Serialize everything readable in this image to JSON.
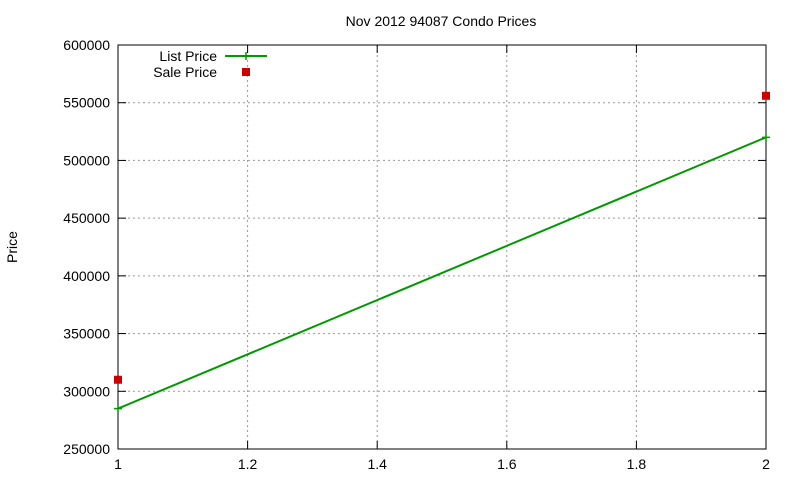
{
  "chart_data": {
    "type": "line",
    "title": "Nov 2012 94087 Condo Prices",
    "xlabel": "",
    "ylabel": "Price",
    "xlim": [
      1,
      2
    ],
    "ylim": [
      250000,
      600000
    ],
    "xticks": [
      1,
      1.2,
      1.4,
      1.6,
      1.8,
      2
    ],
    "xtick_labels": [
      "1",
      "1.2",
      "1.4",
      "1.6",
      "1.8",
      "2"
    ],
    "yticks": [
      250000,
      300000,
      350000,
      400000,
      450000,
      500000,
      550000,
      600000
    ],
    "ytick_labels": [
      "250000",
      "300000",
      "350000",
      "400000",
      "450000",
      "500000",
      "550000",
      "600000"
    ],
    "grid": true,
    "legend_position": "top-left",
    "series": [
      {
        "name": "List Price",
        "style": "line-with-plus-markers",
        "color": "#009900",
        "points": [
          [
            1,
            285000
          ],
          [
            2,
            520000
          ]
        ]
      },
      {
        "name": "Sale Price",
        "style": "square-markers",
        "color": "#cc0000",
        "points": [
          [
            1,
            310000
          ],
          [
            2,
            556000
          ]
        ]
      }
    ]
  }
}
